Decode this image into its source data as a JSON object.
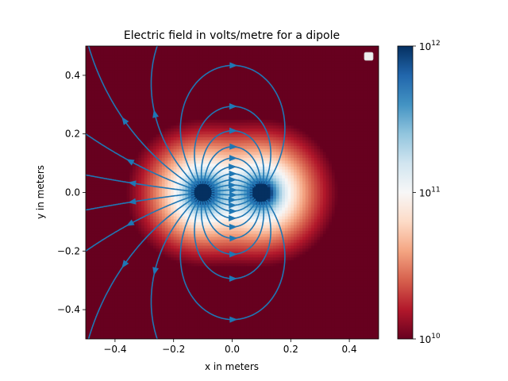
{
  "chart_data": {
    "type": "heatmap",
    "title": "Electric field in volts/metre for a dipole",
    "xlabel": "x in meters",
    "ylabel": "y in meters",
    "xlim": [
      -0.5,
      0.5
    ],
    "ylim": [
      -0.5,
      0.5
    ],
    "xticks": [
      -0.4,
      -0.2,
      0.0,
      0.2,
      0.4
    ],
    "xtick_labels": [
      "−0.4",
      "−0.2",
      "0.0",
      "0.2",
      "0.4"
    ],
    "yticks": [
      -0.4,
      -0.2,
      0.0,
      0.2,
      0.4
    ],
    "ytick_labels": [
      "−0.4",
      "−0.2",
      "0.0",
      "0.2",
      "0.4"
    ],
    "colorbar": {
      "scale": "log",
      "range": [
        10000000000.0,
        1000000000000.0
      ],
      "ticks": [
        10000000000.0,
        100000000000.0,
        1000000000000.0
      ],
      "tick_labels": [
        {
          "base": "10",
          "exp": "10"
        },
        {
          "base": "10",
          "exp": "11"
        },
        {
          "base": "10",
          "exp": "12"
        }
      ],
      "colormap": "RdBu"
    },
    "field_model": {
      "description_free": false,
      "charges": [
        {
          "q": 1,
          "x": -0.1,
          "y": 0.0
        },
        {
          "q": -1,
          "x": 0.1,
          "y": 0.0
        }
      ],
      "magnitude_scale": 1000000000.0
    },
    "grid": false,
    "legend_location": "upper right",
    "streamline_color": "#1f77b4"
  }
}
